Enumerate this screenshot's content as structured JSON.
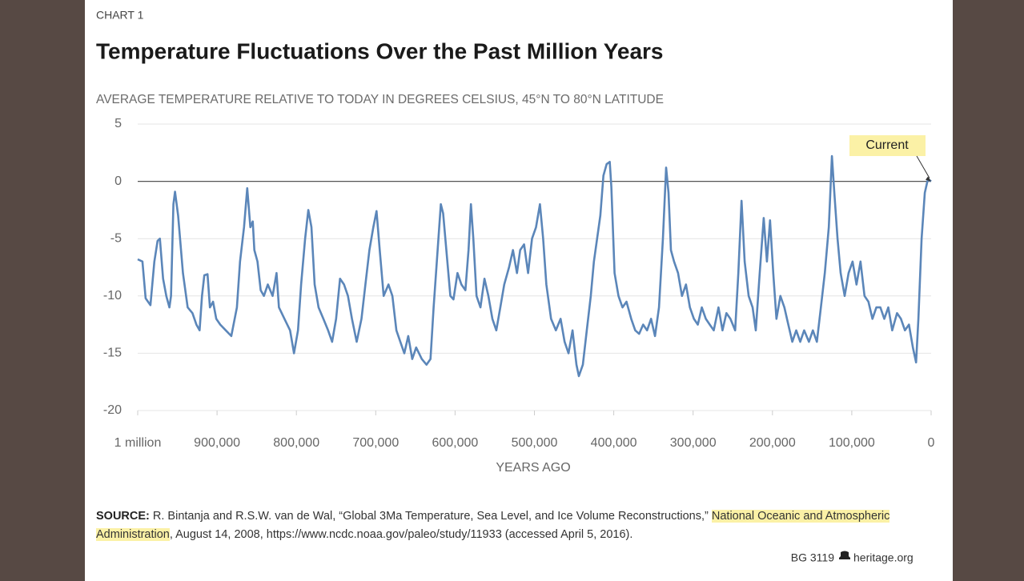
{
  "chart_data": {
    "type": "line",
    "kicker": "CHART 1",
    "title": "Temperature Fluctuations Over the Past Million Years",
    "subtitle": "AVERAGE TEMPERATURE RELATIVE TO TODAY IN DEGREES CELSIUS, 45°N TO 80°N LATITUDE",
    "x_label": "YEARS AGO",
    "annotation": "Current",
    "xlim": [
      1000000,
      0
    ],
    "xticks": [
      {
        "value": 1000000,
        "label": "1 million"
      },
      {
        "value": 900000,
        "label": "900,000"
      },
      {
        "value": 800000,
        "label": "800,000"
      },
      {
        "value": 700000,
        "label": "700,000"
      },
      {
        "value": 600000,
        "label": "600,000"
      },
      {
        "value": 500000,
        "label": "500,000"
      },
      {
        "value": 400000,
        "label": "400,000"
      },
      {
        "value": 300000,
        "label": "300,000"
      },
      {
        "value": 200000,
        "label": "200,000"
      },
      {
        "value": 100000,
        "label": "100,000"
      },
      0
    ],
    "ylim": [
      -20,
      5
    ],
    "yticks": [
      5,
      0,
      -5,
      -10,
      -15,
      -20
    ],
    "grid": true,
    "color": "#5b86b9",
    "x": [
      1000000,
      994000,
      990000,
      984000,
      979000,
      975000,
      972000,
      968000,
      964000,
      960000,
      958000,
      955000,
      953000,
      949000,
      943000,
      937000,
      931000,
      926000,
      922000,
      919000,
      916000,
      912000,
      909000,
      905000,
      901000,
      896000,
      889000,
      882000,
      875000,
      871000,
      866000,
      862000,
      858000,
      855000,
      853000,
      849000,
      845000,
      841000,
      836000,
      830000,
      825000,
      822000,
      815000,
      808000,
      803000,
      798000,
      794000,
      789000,
      785000,
      781000,
      777000,
      772000,
      766000,
      760000,
      755000,
      750000,
      745000,
      740000,
      735000,
      730000,
      724000,
      718000,
      713000,
      708000,
      703000,
      699000,
      695000,
      690000,
      684000,
      679000,
      674000,
      669000,
      664000,
      659000,
      654000,
      649000,
      642000,
      636000,
      631000,
      627000,
      622000,
      618000,
      615000,
      611000,
      606000,
      602000,
      597000,
      592000,
      587000,
      583000,
      580000,
      577000,
      573000,
      568000,
      563000,
      558000,
      553000,
      548000,
      543000,
      538000,
      532000,
      527000,
      522000,
      518000,
      513000,
      508000,
      503000,
      498000,
      493000,
      489000,
      485000,
      479000,
      473000,
      467000,
      462000,
      457000,
      452000,
      447000,
      444000,
      439000,
      434000,
      429000,
      425000,
      421000,
      417000,
      413000,
      409000,
      405000,
      403000,
      399000,
      394000,
      389000,
      384000,
      378000,
      373000,
      368000,
      363000,
      358000,
      353000,
      348000,
      343000,
      338000,
      334000,
      331000,
      328000,
      324000,
      319000,
      314000,
      309000,
      304000,
      299000,
      294000,
      289000,
      284000,
      279000,
      274000,
      268000,
      263000,
      258000,
      253000,
      247000,
      243000,
      239000,
      235000,
      230000,
      225000,
      221000,
      216000,
      211000,
      207000,
      203000,
      199000,
      195000,
      190000,
      185000,
      180000,
      175000,
      170000,
      165000,
      160000,
      154000,
      149000,
      144000,
      139000,
      134000,
      129000,
      125000,
      122000,
      118000,
      114000,
      109000,
      104000,
      99000,
      94000,
      89000,
      84000,
      79000,
      74000,
      69000,
      64000,
      59000,
      54000,
      49000,
      43000,
      38000,
      33000,
      28000,
      23000,
      19000,
      16000,
      12000,
      8000,
      4000,
      0
    ],
    "values": [
      -6.8,
      -7,
      -10.2,
      -10.8,
      -7,
      -5.2,
      -5,
      -8.5,
      -10,
      -11,
      -10,
      -2,
      -0.9,
      -3,
      -8,
      -11,
      -11.5,
      -12.5,
      -13,
      -10,
      -8.2,
      -8.1,
      -11,
      -10.5,
      -12,
      -12.5,
      -13,
      -13.5,
      -11,
      -7,
      -4,
      -0.6,
      -4,
      -3.5,
      -6,
      -7,
      -9.5,
      -10,
      -9,
      -10,
      -8,
      -11,
      -12,
      -13,
      -15,
      -13,
      -9,
      -5,
      -2.5,
      -4,
      -9,
      -11,
      -12,
      -13,
      -14,
      -12,
      -8.5,
      -9,
      -10,
      -12,
      -14,
      -12,
      -9,
      -6,
      -4,
      -2.6,
      -6,
      -10,
      -9,
      -10,
      -13,
      -14,
      -15,
      -13.5,
      -15.5,
      -14.5,
      -15.5,
      -16,
      -15.5,
      -11,
      -6,
      -2,
      -2.8,
      -6,
      -10,
      -10.3,
      -8,
      -9,
      -9.5,
      -6,
      -2,
      -5,
      -10,
      -11,
      -8.5,
      -10,
      -12,
      -13,
      -11,
      -9,
      -7.5,
      -6,
      -8,
      -6,
      -5.5,
      -8,
      -5,
      -4,
      -2,
      -5,
      -9,
      -12,
      -13,
      -12,
      -14,
      -15,
      -13,
      -16,
      -17,
      -16,
      -13,
      -10,
      -7,
      -5,
      -3,
      0.5,
      1.5,
      1.7,
      -0.5,
      -8,
      -10,
      -11,
      -10.5,
      -12,
      -13,
      -13.3,
      -12.5,
      -13,
      -12,
      -13.5,
      -11,
      -5,
      1.2,
      -1,
      -6,
      -7,
      -8,
      -10,
      -9,
      -11,
      -12,
      -12.5,
      -11,
      -12,
      -12.5,
      -13,
      -11,
      -13,
      -11.5,
      -12,
      -13,
      -8,
      -1.7,
      -7,
      -10,
      -11,
      -13,
      -8,
      -3.2,
      -7,
      -3.4,
      -8,
      -12,
      -10,
      -11,
      -12.5,
      -14,
      -13,
      -14,
      -13,
      -14,
      -13,
      -14,
      -11,
      -8,
      -4,
      2.2,
      -1,
      -5,
      -8,
      -10,
      -8,
      -7,
      -9,
      -7,
      -10,
      -10.5,
      -12,
      -11,
      -11,
      -12,
      -11,
      -13,
      -11.5,
      -12,
      -13,
      -12.5,
      -14.5,
      -15.8,
      -12,
      -5,
      -1,
      0.2,
      0
    ],
    "source": [
      "SOURCE:",
      "R. Bintanja and R.S.W. van de Wal, “Global 3Ma Temperature, Sea Level, and Ice Volume Reconstructions,”",
      "National Oceanic and Atmospheric Administration",
      ", August 14, 2008, https://www.ncdc.noaa.gov/paleo/study/11933 (accessed April 5, 2016)."
    ],
    "footer": [
      "BG 3119",
      "heritage.org"
    ]
  }
}
